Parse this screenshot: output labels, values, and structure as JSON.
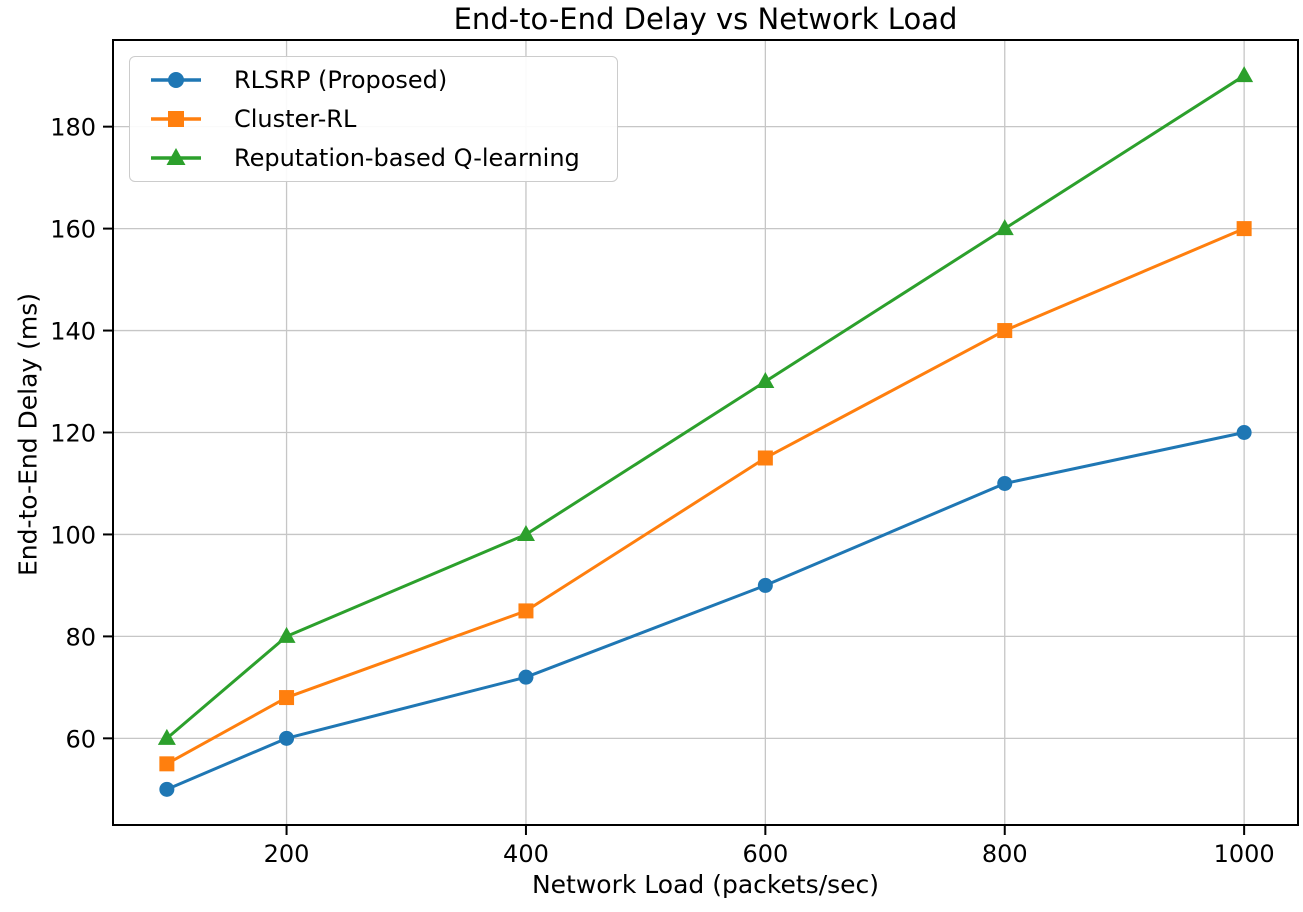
{
  "chart_data": {
    "type": "line",
    "title": "End-to-End Delay vs Network Load",
    "xlabel": "Network Load (packets/sec)",
    "ylabel": "End-to-End Delay (ms)",
    "x": [
      100,
      200,
      400,
      600,
      800,
      1000
    ],
    "series": [
      {
        "name": "RLSRP (Proposed)",
        "color": "#1f77b4",
        "marker": "circle",
        "values": [
          50,
          60,
          72,
          90,
          110,
          120
        ]
      },
      {
        "name": "Cluster-RL",
        "color": "#ff7f0e",
        "marker": "square",
        "values": [
          55,
          68,
          85,
          115,
          140,
          160
        ]
      },
      {
        "name": "Reputation-based Q-learning",
        "color": "#2ca02c",
        "marker": "triangle",
        "values": [
          60,
          80,
          100,
          130,
          160,
          190
        ]
      }
    ],
    "xticks": [
      200,
      400,
      600,
      800,
      1000
    ],
    "yticks": [
      60,
      80,
      100,
      120,
      140,
      160,
      180
    ],
    "xlim": [
      55,
      1045
    ],
    "ylim": [
      43,
      197
    ],
    "grid": true,
    "grid_color": "#c6c6c6",
    "spine_color": "#000000",
    "legend_position": "upper left"
  }
}
